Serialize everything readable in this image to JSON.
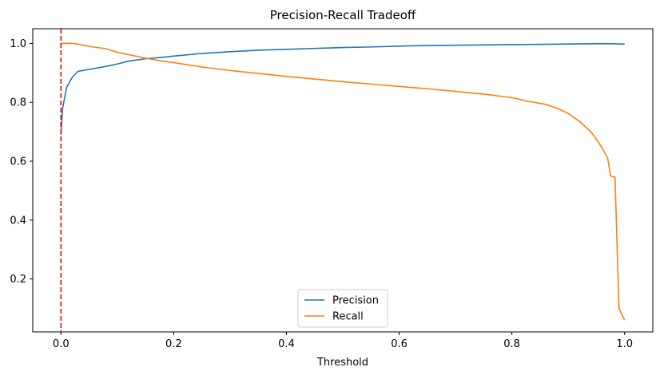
{
  "chart_data": {
    "type": "line",
    "title": "Precision-Recall Tradeoff",
    "xlabel": "Threshold",
    "ylabel": "",
    "xlim": [
      -0.05,
      1.05
    ],
    "ylim": [
      0.02,
      1.05
    ],
    "xticks": [
      0.0,
      0.2,
      0.4,
      0.6,
      0.8,
      1.0
    ],
    "xtick_labels": [
      "0.0",
      "0.2",
      "0.4",
      "0.6",
      "0.8",
      "1.0"
    ],
    "yticks": [
      0.2,
      0.4,
      0.6,
      0.8,
      1.0
    ],
    "ytick_labels": [
      "0.2",
      "0.4",
      "0.6",
      "0.8",
      "1.0"
    ],
    "grid": false,
    "legend_position": "lower-center",
    "series": [
      {
        "name": "Precision",
        "color": "#1f77b4",
        "x": [
          0.0,
          0.003,
          0.01,
          0.02,
          0.03,
          0.05,
          0.08,
          0.1,
          0.12,
          0.15,
          0.18,
          0.2,
          0.25,
          0.3,
          0.35,
          0.4,
          0.45,
          0.5,
          0.55,
          0.6,
          0.65,
          0.7,
          0.75,
          0.8,
          0.85,
          0.9,
          0.95,
          0.98,
          0.99,
          1.0
        ],
        "values": [
          0.69,
          0.78,
          0.85,
          0.885,
          0.905,
          0.912,
          0.922,
          0.93,
          0.94,
          0.948,
          0.953,
          0.957,
          0.966,
          0.972,
          0.977,
          0.98,
          0.983,
          0.986,
          0.988,
          0.991,
          0.993,
          0.994,
          0.995,
          0.996,
          0.997,
          0.998,
          0.999,
          0.999,
          0.998,
          0.998
        ]
      },
      {
        "name": "Recall",
        "color": "#ff7f0e",
        "x": [
          0.0,
          0.02,
          0.03,
          0.05,
          0.08,
          0.1,
          0.12,
          0.15,
          0.18,
          0.2,
          0.25,
          0.3,
          0.35,
          0.4,
          0.45,
          0.5,
          0.55,
          0.6,
          0.65,
          0.7,
          0.75,
          0.8,
          0.83,
          0.86,
          0.88,
          0.9,
          0.92,
          0.94,
          0.95,
          0.96,
          0.97,
          0.975,
          0.978,
          0.983,
          0.99,
          0.995,
          1.0
        ],
        "values": [
          1.0,
          1.0,
          0.998,
          0.99,
          0.982,
          0.97,
          0.962,
          0.95,
          0.94,
          0.935,
          0.92,
          0.908,
          0.898,
          0.888,
          0.879,
          0.87,
          0.862,
          0.854,
          0.846,
          0.837,
          0.828,
          0.816,
          0.803,
          0.793,
          0.78,
          0.762,
          0.735,
          0.7,
          0.675,
          0.645,
          0.61,
          0.55,
          0.548,
          0.545,
          0.1,
          0.08,
          0.06
        ]
      }
    ],
    "vline": {
      "x": 0.0,
      "color": "#ff0000",
      "style": "dashed"
    }
  }
}
